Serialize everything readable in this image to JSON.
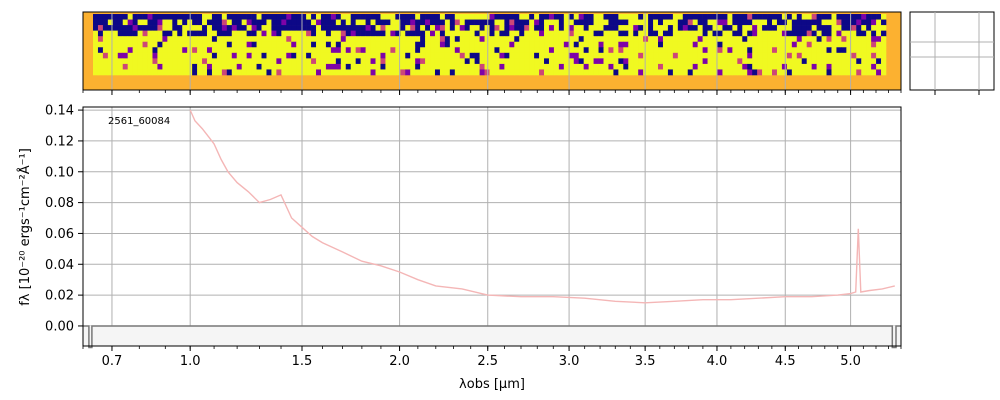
{
  "chart_data": {
    "type": "line",
    "annotation": "2561_60084",
    "xlabel": "λobs [μm]",
    "ylabel": "fλ [10⁻²⁰ ergs⁻¹cm⁻²Å⁻¹]",
    "xlim": [
      0.6,
      5.4
    ],
    "ylim": [
      -0.013,
      0.142
    ],
    "grid": true,
    "x_ticks": [
      "0.7",
      "1.0",
      "1.5",
      "2.0",
      "2.5",
      "3.0",
      "3.5",
      "4.0",
      "4.5",
      "5.0"
    ],
    "y_ticks": [
      "0.00",
      "0.02",
      "0.04",
      "0.06",
      "0.08",
      "0.10",
      "0.12",
      "0.14"
    ],
    "series": [
      {
        "color": "#f4b6b6",
        "x": [
          1.0,
          1.02,
          1.05,
          1.08,
          1.1,
          1.13,
          1.16,
          1.2,
          1.25,
          1.3,
          1.35,
          1.4,
          1.45,
          1.5,
          1.55,
          1.6,
          1.7,
          1.8,
          1.9,
          2.0,
          2.1,
          2.2,
          2.35,
          2.5,
          2.7,
          2.9,
          3.1,
          3.3,
          3.5,
          3.7,
          3.9,
          4.1,
          4.3,
          4.5,
          4.7,
          4.9,
          5.0,
          5.04,
          5.06,
          5.08,
          5.15,
          5.25,
          5.35
        ],
        "y": [
          0.14,
          0.133,
          0.128,
          0.122,
          0.118,
          0.108,
          0.1,
          0.093,
          0.087,
          0.08,
          0.082,
          0.085,
          0.07,
          0.064,
          0.058,
          0.054,
          0.048,
          0.042,
          0.039,
          0.035,
          0.03,
          0.026,
          0.024,
          0.02,
          0.019,
          0.019,
          0.018,
          0.016,
          0.015,
          0.016,
          0.017,
          0.017,
          0.018,
          0.019,
          0.019,
          0.02,
          0.021,
          0.022,
          0.063,
          0.022,
          0.023,
          0.024,
          0.026
        ]
      },
      {
        "color": "#777777",
        "x": [
          0.6,
          0.62,
          0.62,
          0.63,
          0.63,
          5.33,
          5.33,
          5.36,
          5.36,
          5.4
        ],
        "y": [
          0.0,
          0.0,
          -0.014,
          -0.014,
          0.0,
          0.0,
          -0.014,
          -0.014,
          0.0,
          0.0
        ]
      }
    ],
    "spectrum_2d": {
      "colormap": [
        "#0d0887",
        "#7e03a8",
        "#cc4778",
        "#f89540",
        "#f0f921"
      ],
      "background_color": "#fcb130"
    }
  }
}
